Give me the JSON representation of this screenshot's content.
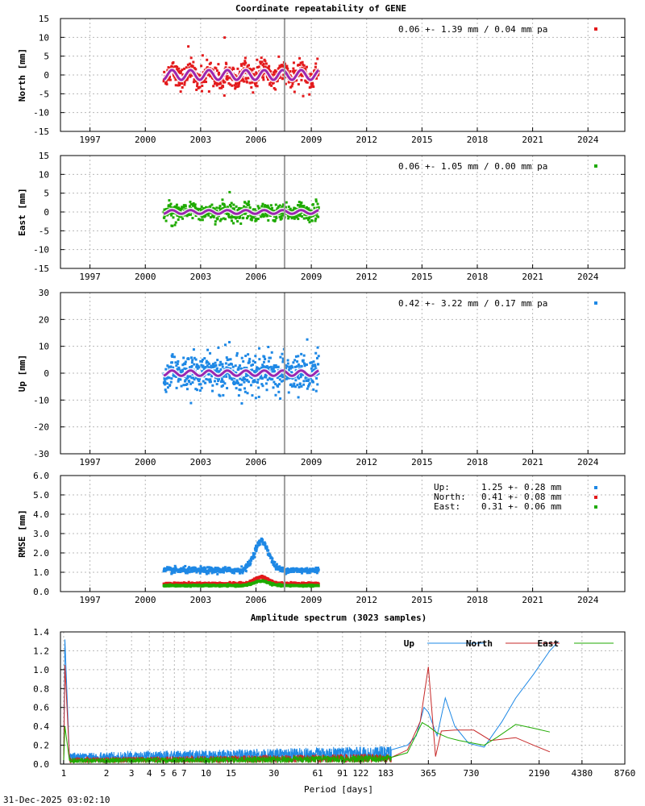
{
  "chart_data": [
    {
      "type": "scatter",
      "id": "north",
      "title": "Coordinate repeatability of GENE",
      "xlabel": "",
      "ylabel": "North [mm]",
      "xlim": [
        1995.4,
        2026.0
      ],
      "ylim": [
        -15,
        15
      ],
      "xticks": [
        1997,
        2000,
        2003,
        2006,
        2009,
        2012,
        2015,
        2018,
        2021,
        2024
      ],
      "yticks": [
        -15,
        -10,
        -5,
        0,
        5,
        10,
        15
      ],
      "ytick_labels": [
        "-15",
        "-10",
        "-5",
        "0",
        "5",
        "10",
        "15"
      ],
      "series": [
        {
          "name": "North",
          "color": "#e31a1c",
          "time_range": [
            2001.0,
            2009.4
          ],
          "mean": 0.0,
          "scatter_sd": 1.39,
          "seasonal_amplitude": 1.3
        },
        {
          "name": "seasonal fit",
          "color": "#9c27b0",
          "time_range": [
            2001.0,
            2009.4
          ],
          "mean": 0.0,
          "seasonal_amplitude": 1.3
        }
      ],
      "annotation": "0.06 +- 1.39 mm /  0.04 mm pa",
      "marker_line_x": 2007.55
    },
    {
      "type": "scatter",
      "id": "east",
      "title": "",
      "xlabel": "",
      "ylabel": "East [mm]",
      "xlim": [
        1995.4,
        2026.0
      ],
      "ylim": [
        -15,
        15
      ],
      "xticks": [
        1997,
        2000,
        2003,
        2006,
        2009,
        2012,
        2015,
        2018,
        2021,
        2024
      ],
      "yticks": [
        -15,
        -10,
        -5,
        0,
        5,
        10,
        15
      ],
      "ytick_labels": [
        "-15",
        "-10",
        "-5",
        "0",
        "5",
        "10",
        "15"
      ],
      "series": [
        {
          "name": "East",
          "color": "#1faa00",
          "time_range": [
            2001.0,
            2009.4
          ],
          "mean": 0.0,
          "scatter_sd": 1.05,
          "seasonal_amplitude": 0.5
        },
        {
          "name": "seasonal fit",
          "color": "#9c27b0",
          "time_range": [
            2001.0,
            2009.4
          ],
          "mean": 0.0,
          "seasonal_amplitude": 0.5
        }
      ],
      "annotation": "0.06 +- 1.05 mm /  0.00 mm pa",
      "marker_line_x": 2007.55
    },
    {
      "type": "scatter",
      "id": "up",
      "title": "",
      "xlabel": "",
      "ylabel": "Up [mm]",
      "xlim": [
        1995.4,
        2026.0
      ],
      "ylim": [
        -30,
        30
      ],
      "xticks": [
        1997,
        2000,
        2003,
        2006,
        2009,
        2012,
        2015,
        2018,
        2021,
        2024
      ],
      "yticks": [
        -30,
        -20,
        -10,
        0,
        10,
        20,
        30
      ],
      "ytick_labels": [
        "-30",
        "-20",
        "-10",
        "0",
        "10",
        "20",
        "30"
      ],
      "series": [
        {
          "name": "Up",
          "color": "#1e88e5",
          "time_range": [
            2001.0,
            2009.4
          ],
          "mean": 0.0,
          "scatter_sd": 3.22,
          "seasonal_amplitude": 1.0
        },
        {
          "name": "seasonal fit",
          "color": "#9c27b0",
          "time_range": [
            2001.0,
            2009.4
          ],
          "mean": 0.0,
          "seasonal_amplitude": 1.0
        }
      ],
      "annotation": "0.42 +- 3.22 mm /  0.17 mm pa",
      "marker_line_x": 2007.55
    },
    {
      "type": "scatter",
      "id": "rmse",
      "title": "",
      "xlabel": "",
      "ylabel": "RMSE [mm]",
      "xlim": [
        1995.4,
        2026.0
      ],
      "ylim": [
        0,
        6
      ],
      "xticks": [
        1997,
        2000,
        2003,
        2006,
        2009,
        2012,
        2015,
        2018,
        2021,
        2024
      ],
      "yticks": [
        0,
        1,
        2,
        3,
        4,
        5,
        6
      ],
      "ytick_labels": [
        "0.0",
        "1.0",
        "2.0",
        "3.0",
        "4.0",
        "5.0",
        "6.0"
      ],
      "series": [
        {
          "name": "Up",
          "color": "#1e88e5",
          "time_range": [
            2001.0,
            2009.4
          ],
          "baseline": 1.1,
          "peak": {
            "at": 2006.3,
            "value": 2.6
          }
        },
        {
          "name": "North",
          "color": "#e31a1c",
          "time_range": [
            2001.0,
            2009.4
          ],
          "baseline": 0.41,
          "peak": {
            "at": 2006.3,
            "value": 0.75
          }
        },
        {
          "name": "East",
          "color": "#1faa00",
          "time_range": [
            2001.0,
            2009.4
          ],
          "baseline": 0.31,
          "peak": {
            "at": 2006.3,
            "value": 0.55
          }
        }
      ],
      "legend": [
        {
          "label": "Up:",
          "value": "1.25 +- 0.28 mm",
          "color": "#1e88e5"
        },
        {
          "label": "North:",
          "value": "0.41 +- 0.08 mm",
          "color": "#e31a1c"
        },
        {
          "label": "East:",
          "value": "0.31 +- 0.06 mm",
          "color": "#1faa00"
        }
      ],
      "marker_line_x": 2007.55
    },
    {
      "type": "line",
      "id": "spectrum",
      "title": "Amplitude spectrum (3023 samples)",
      "xlabel": "Period [days]",
      "ylabel": "",
      "x_scale": "log",
      "xlim": [
        0.95,
        8760
      ],
      "ylim": [
        0,
        1.4
      ],
      "xticks": [
        1,
        2,
        3,
        4,
        5,
        6,
        7,
        10,
        15,
        30,
        61,
        91,
        122,
        183,
        365,
        730,
        2190,
        4380,
        8760
      ],
      "xtick_labels": [
        "1",
        "2",
        "3",
        "4",
        "5",
        "6",
        "7",
        "10",
        "15",
        "30",
        "61",
        "91",
        "122",
        "183",
        "365",
        "730",
        "2190",
        "4380",
        "8760"
      ],
      "yticks": [
        0,
        0.2,
        0.4,
        0.6,
        0.8,
        1.0,
        1.2,
        1.4
      ],
      "ytick_labels": [
        "0.0",
        "0.2",
        "0.4",
        "0.6",
        "0.8",
        "1.0",
        "1.2",
        "1.4"
      ],
      "legend_position": "top-right",
      "series": [
        {
          "name": "Up",
          "color": "#1e88e5",
          "x": [
            1.0,
            1.02,
            1.1,
            200,
            260,
            300,
            340,
            365,
            420,
            480,
            560,
            700,
            900,
            1200,
            1500,
            2000,
            2600,
            3000
          ],
          "y": [
            0.0,
            1.32,
            0.15,
            0.15,
            0.2,
            0.3,
            0.6,
            0.55,
            0.3,
            0.7,
            0.4,
            0.22,
            0.18,
            0.45,
            0.7,
            0.95,
            1.2,
            1.3
          ],
          "noise_level": 0.12
        },
        {
          "name": "North",
          "color": "#c62828",
          "x": [
            1.0,
            1.02,
            1.1,
            200,
            260,
            320,
            365,
            410,
            450,
            560,
            760,
            1000,
            1500,
            2000,
            2600
          ],
          "y": [
            0.0,
            1.05,
            0.1,
            0.07,
            0.15,
            0.45,
            1.03,
            0.08,
            0.35,
            0.36,
            0.36,
            0.25,
            0.28,
            0.2,
            0.13
          ],
          "noise_level": 0.07
        },
        {
          "name": "East",
          "color": "#1faa00",
          "x": [
            1.0,
            1.02,
            1.1,
            200,
            260,
            330,
            365,
            420,
            500,
            600,
            900,
            1100,
            1500,
            2000,
            2600
          ],
          "y": [
            0.0,
            0.4,
            0.08,
            0.07,
            0.12,
            0.44,
            0.4,
            0.33,
            0.28,
            0.25,
            0.2,
            0.28,
            0.42,
            0.38,
            0.34
          ],
          "noise_level": 0.06
        }
      ]
    }
  ],
  "footer": {
    "timestamp": "31-Dec-2025 03:02:10"
  }
}
